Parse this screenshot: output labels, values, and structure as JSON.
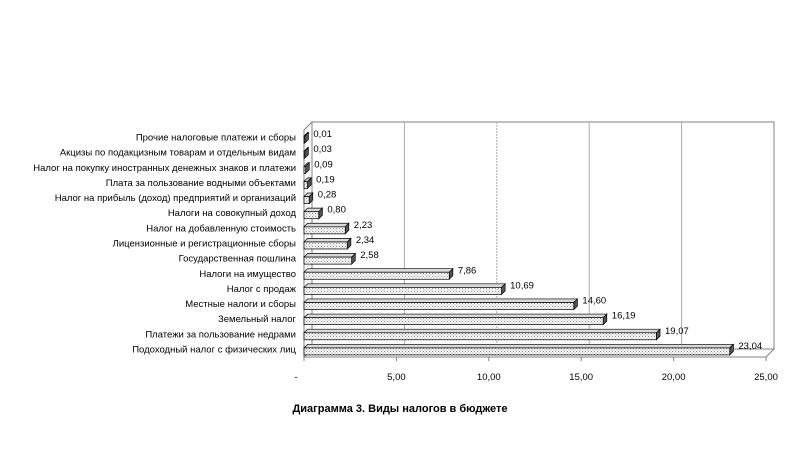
{
  "chart_data": {
    "type": "bar",
    "orientation": "horizontal",
    "style": "3d",
    "title": "Диаграмма 3. Виды налогов в бюджете",
    "categories": [
      "Подоходный налог с физических лиц",
      "Платежи за пользование недрами",
      "Земельный налог",
      "Местные налоги и сборы",
      "Налог с продаж",
      "Налоги на имущество",
      "Государственная пошлина",
      "Лицензионные и регистрационные сборы",
      "Налог на добавленную стоимость",
      "Налоги на совокупный доход",
      "Налог на прибыль (доход) предприятий и организаций",
      "Плата за пользование водными объектами",
      "Налог на покупку иностранных денежных знаков и платежи",
      "Акцизы по подакцизным товарам и отдельным видам",
      "Прочие налоговые платежи и сборы"
    ],
    "values": [
      23.04,
      19.07,
      16.19,
      14.6,
      10.69,
      7.86,
      2.58,
      2.34,
      2.23,
      0.8,
      0.28,
      0.19,
      0.09,
      0.03,
      0.01
    ],
    "value_labels": [
      "23,04",
      "19,07",
      "16,19",
      "14,60",
      "10,69",
      "7,86",
      "2,58",
      "2,34",
      "2,23",
      "0,80",
      "0,28",
      "0,19",
      "0,09",
      "0,03",
      "0,01"
    ],
    "xlim": [
      0,
      25
    ],
    "xticks": [
      {
        "value": 0,
        "label": "-"
      },
      {
        "value": 5,
        "label": "5,00"
      },
      {
        "value": 10,
        "label": "10,00"
      },
      {
        "value": 15,
        "label": "15,00"
      },
      {
        "value": 20,
        "label": "20,00"
      },
      {
        "value": 25,
        "label": "25,00"
      }
    ],
    "grid": "vertical",
    "legend": "none",
    "colors": {
      "bar_front": "#ffffff",
      "bar_hatch": "#9a9a9a",
      "bar_top": "#d9d9d9",
      "bar_side": "#555555",
      "gridline": "#aaaaaa",
      "axis": "#808080"
    }
  }
}
